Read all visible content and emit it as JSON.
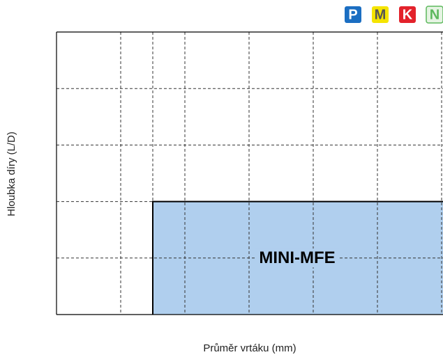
{
  "chart_data": {
    "type": "region",
    "xlabel": "Průměr vrtáku (mm)",
    "ylabel": "Hloubka díry (L/D)",
    "xlim": [
      0,
      6
    ],
    "ylim": [
      0,
      5
    ],
    "xgrid": [
      1,
      1.5,
      2,
      3,
      4,
      5,
      6
    ],
    "ygrid": [
      1,
      2,
      3,
      4
    ],
    "regions": [
      {
        "name": "MINI-MFE",
        "color": "#b0cfee",
        "x": [
          1.5,
          6
        ],
        "y": [
          0,
          2
        ]
      }
    ],
    "materials": [
      {
        "label": "P",
        "color": "#1b6ec2",
        "text_color": "#ffffff"
      },
      {
        "label": "M",
        "color": "#f5e400",
        "text_color": "#555555"
      },
      {
        "label": "K",
        "color": "#e3222b",
        "text_color": "#ffffff"
      },
      {
        "label": "N",
        "color": "#e6f4e3",
        "text_color": "#5cb85c"
      }
    ]
  }
}
